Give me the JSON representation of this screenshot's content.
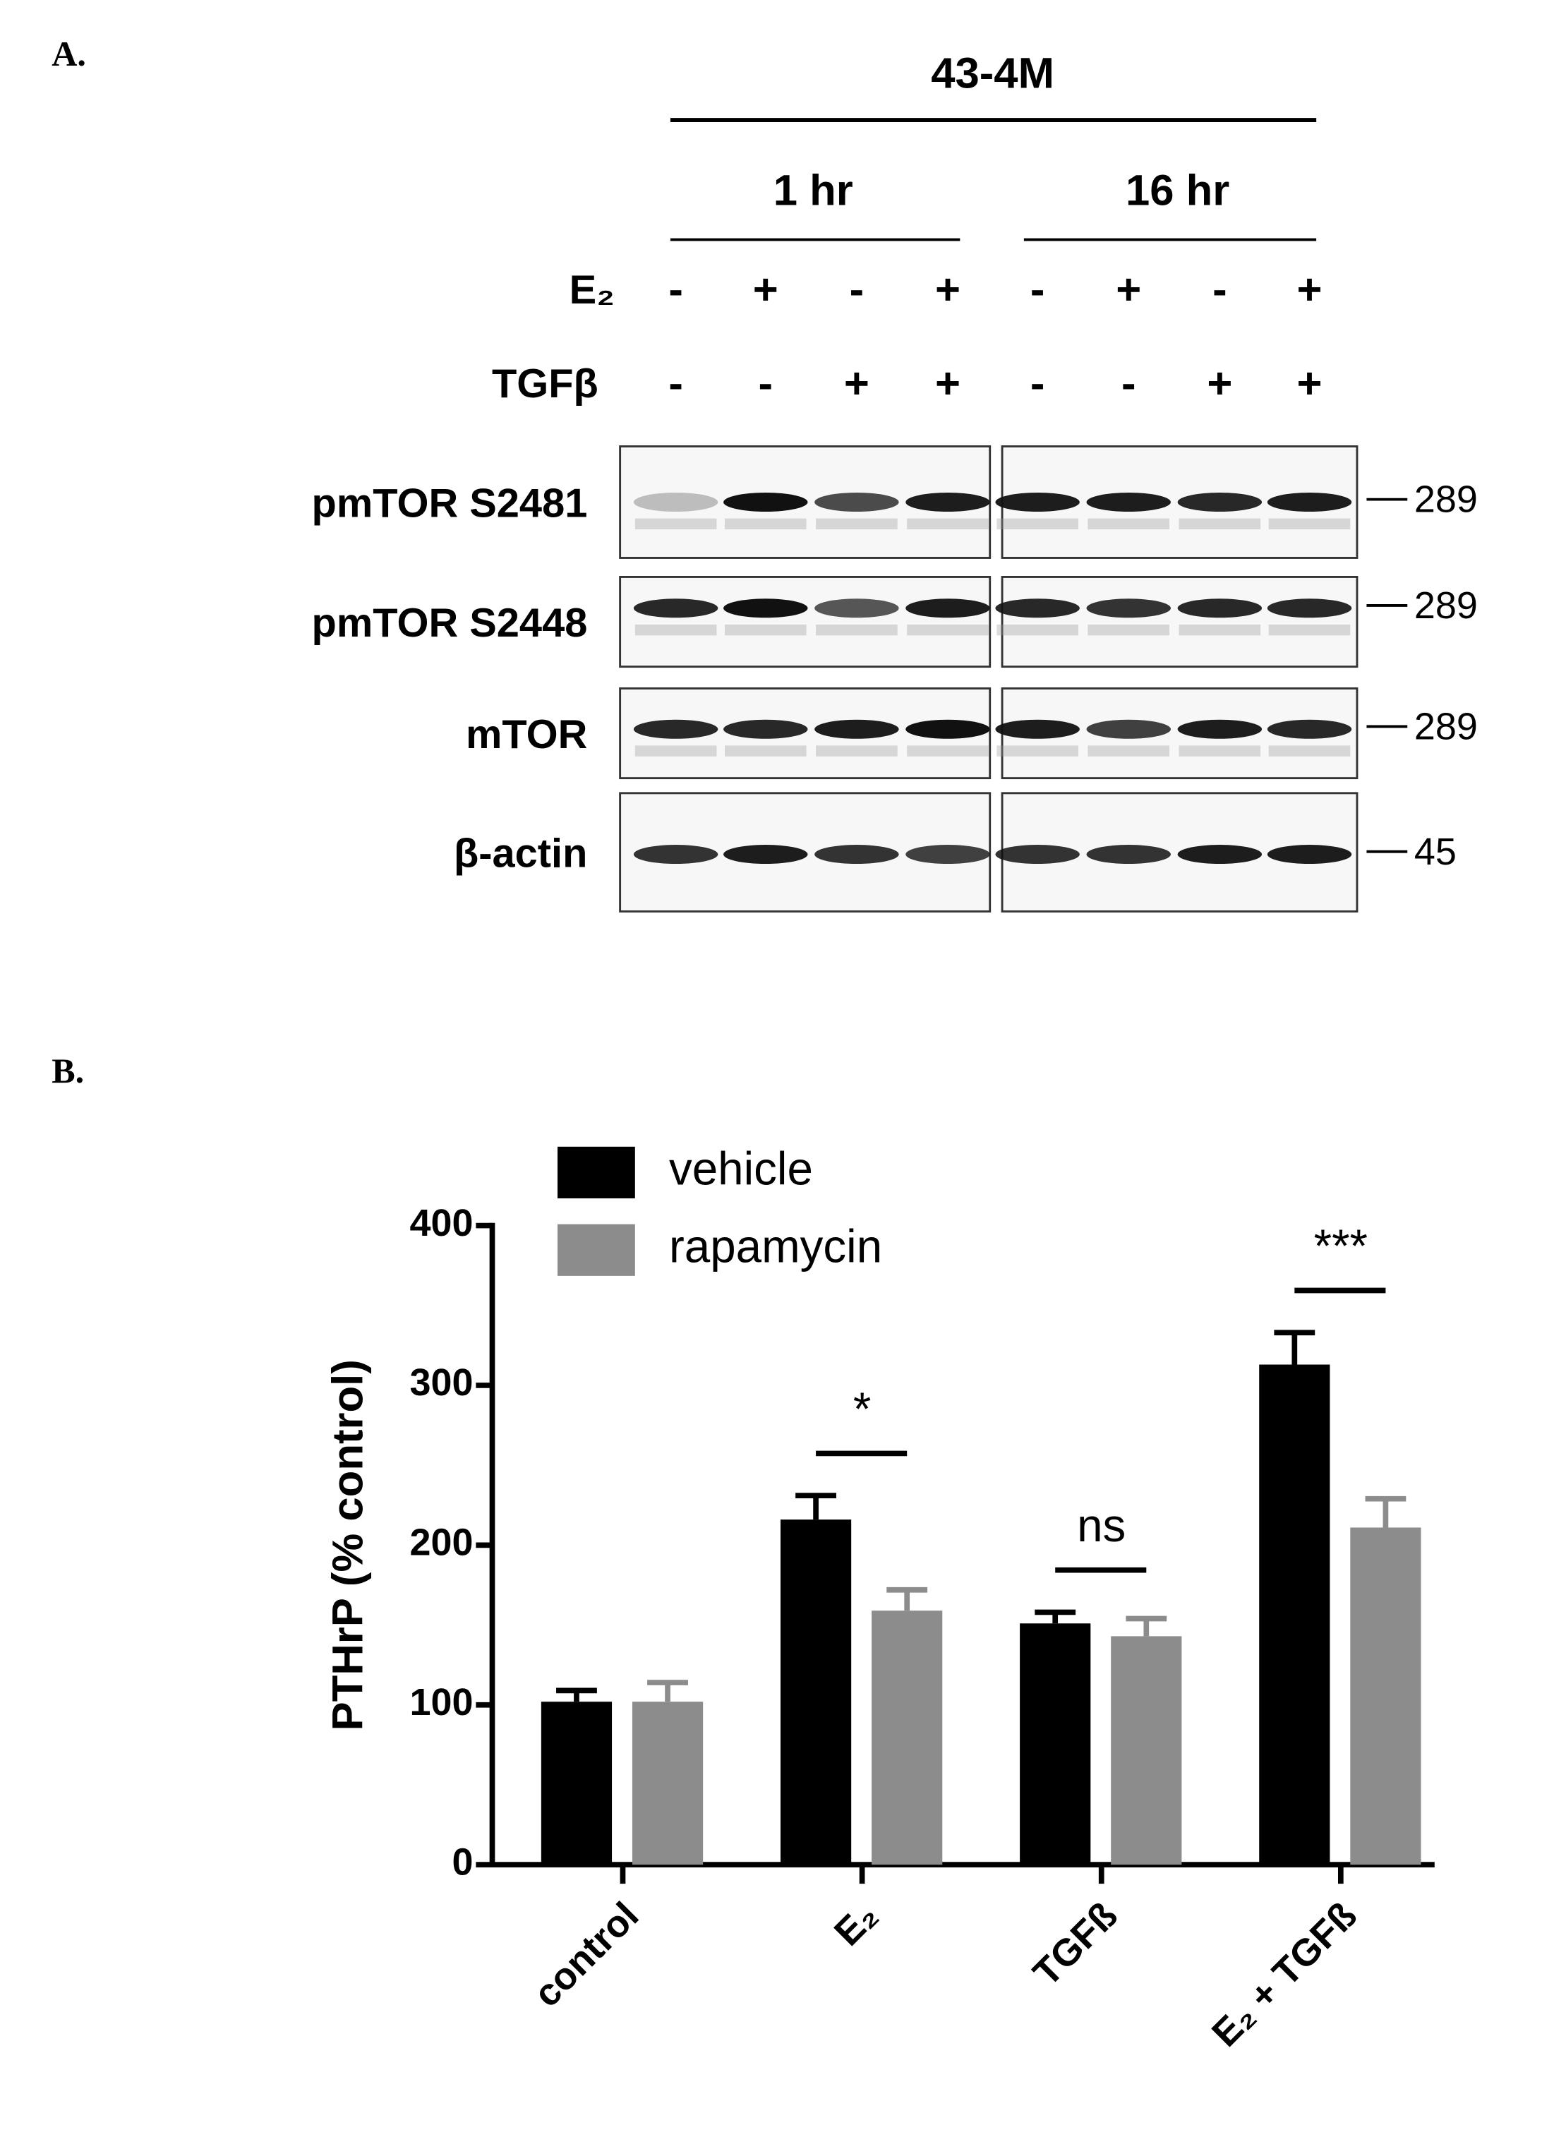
{
  "panel_a": {
    "label": "A.",
    "cell_line": "43-4M",
    "times": [
      "1 hr",
      "16 hr"
    ],
    "rows": [
      {
        "name": "E₂",
        "signs": [
          "-",
          "+",
          "-",
          "+",
          "-",
          "+",
          "-",
          "+"
        ]
      },
      {
        "name": "TGFβ",
        "signs": [
          "-",
          "-",
          "+",
          "+",
          "-",
          "-",
          "+",
          "+"
        ]
      }
    ],
    "blots": [
      {
        "name": "pmTOR S2481",
        "marker": "289"
      },
      {
        "name": "pmTOR S2448",
        "marker": "289"
      },
      {
        "name": "mTOR",
        "marker": "289"
      },
      {
        "name": "β-actin",
        "marker": "45"
      }
    ]
  },
  "panel_b_label": "B.",
  "chart_data": {
    "type": "bar",
    "y_label": "PTHrP (% control)",
    "categories": [
      "control",
      "E₂",
      "TGFß",
      "E₂ + TGFß"
    ],
    "series": [
      {
        "name": "vehicle",
        "color": "#000000",
        "values": [
          102,
          216,
          151,
          313
        ],
        "errors": [
          7,
          15,
          7,
          20
        ]
      },
      {
        "name": "rapamycin",
        "color": "#8c8c8c",
        "values": [
          102,
          159,
          143,
          211
        ],
        "errors": [
          12,
          13,
          11,
          18
        ]
      }
    ],
    "significance": [
      null,
      "*",
      "ns",
      "***"
    ],
    "ylim": [
      0,
      400
    ],
    "yticks": [
      0,
      100,
      200,
      300,
      400
    ],
    "legend": "upper left"
  }
}
